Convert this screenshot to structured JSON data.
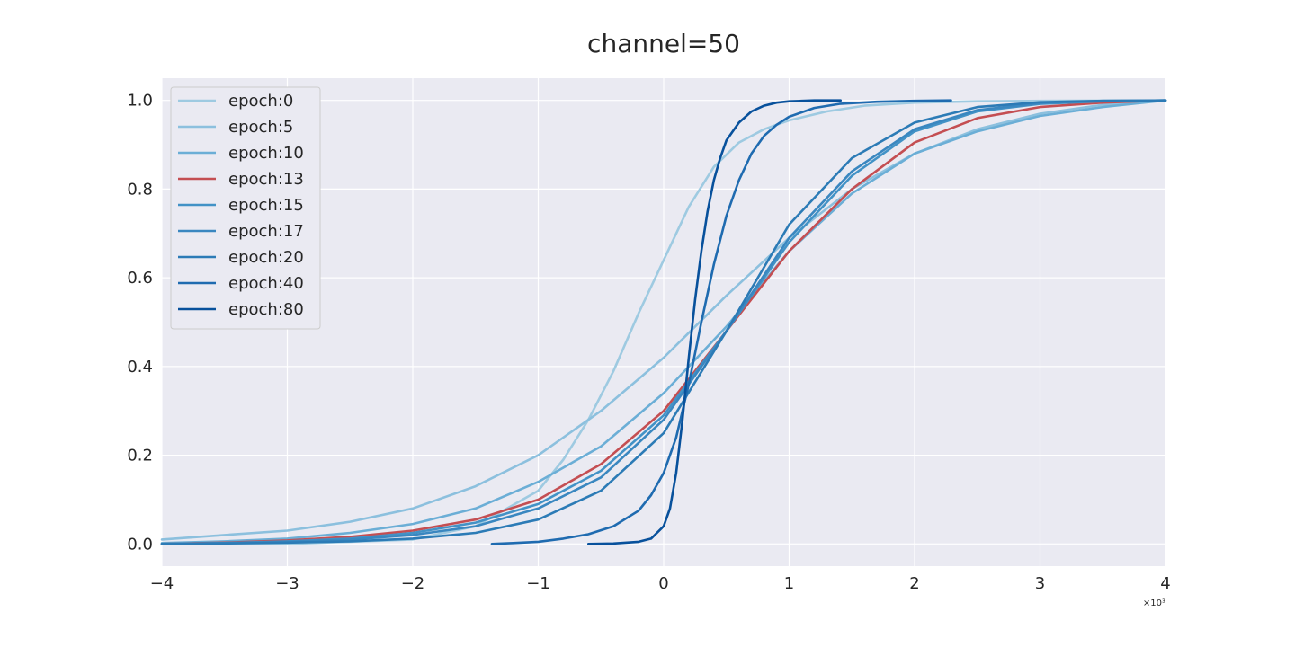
{
  "chart_data": {
    "type": "line",
    "title": "channel=50",
    "xlabel": "",
    "ylabel": "",
    "xlim": [
      -4000,
      4000
    ],
    "ylim": [
      -0.05,
      1.05
    ],
    "x_ticks": [
      -4000,
      -3000,
      -2000,
      -1000,
      0,
      1000,
      2000,
      3000,
      4000
    ],
    "x_tick_labels": [
      "−4",
      "−3",
      "−2",
      "−1",
      "0",
      "1",
      "2",
      "3",
      "4"
    ],
    "x_offset_label": "×10³",
    "y_ticks": [
      0.0,
      0.2,
      0.4,
      0.6,
      0.8,
      1.0
    ],
    "y_tick_labels": [
      "0.0",
      "0.2",
      "0.4",
      "0.6",
      "0.8",
      "1.0"
    ],
    "grid": true,
    "legend_position": "top-left",
    "series": [
      {
        "name": "epoch:0",
        "color": "#9ecae1",
        "x": [
          -4000,
          -3000,
          -2000,
          -1500,
          -1000,
          -800,
          -600,
          -400,
          -200,
          0,
          200,
          400,
          600,
          800,
          1000,
          1300,
          1600,
          2000,
          2500,
          3000,
          4000
        ],
        "y": [
          0.0,
          0.0,
          0.01,
          0.04,
          0.12,
          0.19,
          0.28,
          0.39,
          0.52,
          0.64,
          0.76,
          0.85,
          0.905,
          0.935,
          0.955,
          0.975,
          0.988,
          0.995,
          0.998,
          0.999,
          1.0
        ]
      },
      {
        "name": "epoch:5",
        "color": "#8cc0de",
        "x": [
          -4000,
          -3500,
          -3000,
          -2500,
          -2000,
          -1500,
          -1000,
          -500,
          0,
          500,
          1000,
          1500,
          2000,
          2500,
          3000,
          3500,
          4000
        ],
        "y": [
          0.01,
          0.02,
          0.03,
          0.05,
          0.08,
          0.13,
          0.2,
          0.3,
          0.42,
          0.56,
          0.69,
          0.8,
          0.88,
          0.935,
          0.97,
          0.99,
          1.0
        ]
      },
      {
        "name": "epoch:10",
        "color": "#6baed6",
        "x": [
          -4000,
          -3500,
          -3000,
          -2500,
          -2000,
          -1500,
          -1000,
          -500,
          0,
          500,
          1000,
          1500,
          2000,
          2500,
          3000,
          3500,
          4000
        ],
        "y": [
          0.002,
          0.006,
          0.012,
          0.025,
          0.045,
          0.08,
          0.14,
          0.22,
          0.34,
          0.49,
          0.66,
          0.79,
          0.88,
          0.93,
          0.965,
          0.985,
          1.0
        ]
      },
      {
        "name": "epoch:13",
        "color": "#c44e52",
        "x": [
          -4000,
          -3500,
          -3000,
          -2500,
          -2000,
          -1500,
          -1000,
          -500,
          0,
          500,
          1000,
          1500,
          2000,
          2500,
          3000,
          3500,
          4000
        ],
        "y": [
          0.0,
          0.003,
          0.008,
          0.016,
          0.03,
          0.055,
          0.1,
          0.18,
          0.3,
          0.48,
          0.66,
          0.8,
          0.905,
          0.96,
          0.985,
          0.995,
          1.0
        ]
      },
      {
        "name": "epoch:15",
        "color": "#4292c6",
        "x": [
          -4000,
          -3500,
          -3000,
          -2500,
          -2000,
          -1500,
          -1000,
          -500,
          0,
          500,
          1000,
          1500,
          2000,
          2500,
          3000,
          3500,
          4000
        ],
        "y": [
          0.0,
          0.002,
          0.006,
          0.012,
          0.025,
          0.048,
          0.09,
          0.165,
          0.29,
          0.48,
          0.68,
          0.83,
          0.93,
          0.975,
          0.992,
          0.998,
          1.0
        ]
      },
      {
        "name": "epoch:17",
        "color": "#3a87c0",
        "x": [
          -4000,
          -3500,
          -3000,
          -2500,
          -2000,
          -1500,
          -1000,
          -500,
          0,
          500,
          1000,
          1500,
          2000,
          2500,
          3000,
          3500,
          4000
        ],
        "y": [
          0.0,
          0.002,
          0.005,
          0.01,
          0.02,
          0.04,
          0.08,
          0.15,
          0.28,
          0.48,
          0.69,
          0.84,
          0.935,
          0.978,
          0.994,
          0.999,
          1.0
        ]
      },
      {
        "name": "epoch:20",
        "color": "#2c7bb6",
        "x": [
          -4000,
          -3500,
          -3000,
          -2500,
          -2000,
          -1500,
          -1000,
          -500,
          0,
          500,
          1000,
          1500,
          2000,
          2500,
          3000,
          3500,
          4000
        ],
        "y": [
          0.0,
          0.001,
          0.003,
          0.006,
          0.012,
          0.025,
          0.055,
          0.12,
          0.25,
          0.48,
          0.72,
          0.87,
          0.95,
          0.985,
          0.996,
          0.999,
          1.0
        ]
      },
      {
        "name": "epoch:40",
        "color": "#1f6bb0",
        "x": [
          -1370,
          -1200,
          -1000,
          -800,
          -600,
          -400,
          -200,
          -100,
          0,
          100,
          200,
          300,
          400,
          500,
          600,
          700,
          800,
          900,
          1000,
          1200,
          1400,
          1700,
          2000,
          2290
        ],
        "y": [
          0.0,
          0.002,
          0.005,
          0.012,
          0.022,
          0.04,
          0.075,
          0.11,
          0.16,
          0.24,
          0.36,
          0.5,
          0.63,
          0.74,
          0.82,
          0.88,
          0.92,
          0.945,
          0.963,
          0.983,
          0.992,
          0.997,
          0.999,
          1.0
        ]
      },
      {
        "name": "epoch:80",
        "color": "#08519c",
        "x": [
          -600,
          -400,
          -200,
          -100,
          0,
          50,
          100,
          150,
          200,
          250,
          300,
          350,
          400,
          450,
          500,
          600,
          700,
          800,
          900,
          1000,
          1100,
          1200,
          1410
        ],
        "y": [
          0.0,
          0.001,
          0.005,
          0.012,
          0.04,
          0.08,
          0.16,
          0.28,
          0.42,
          0.55,
          0.66,
          0.75,
          0.82,
          0.87,
          0.91,
          0.95,
          0.975,
          0.988,
          0.995,
          0.998,
          0.999,
          1.0,
          1.0
        ]
      }
    ]
  }
}
